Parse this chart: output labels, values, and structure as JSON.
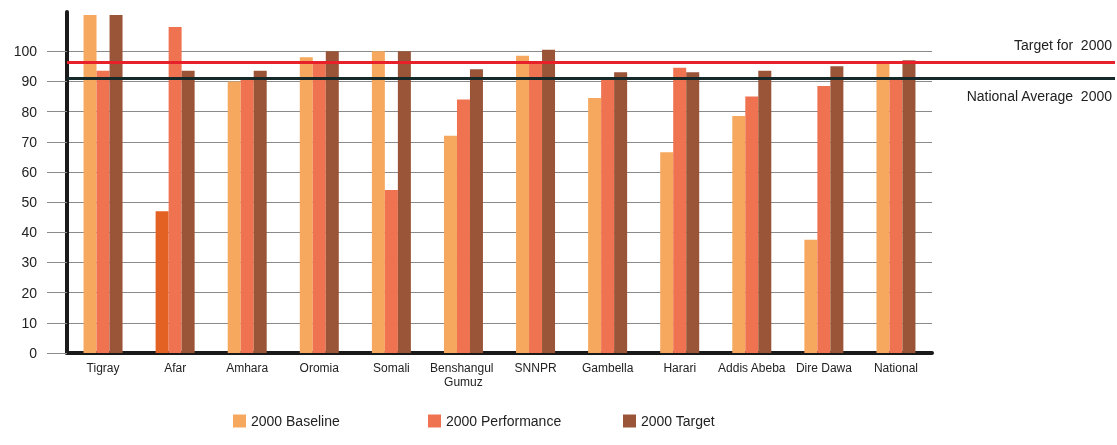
{
  "chart_data": {
    "type": "bar",
    "categories": [
      "Tigray",
      "Afar",
      "Amhara",
      "Oromia",
      "Somali",
      "Benshangul Gumuz",
      "SNNPR",
      "Gambella",
      "Harari",
      "Addis Abeba",
      "Dire Dawa",
      "National"
    ],
    "series": [
      {
        "name": "2000 Baseline",
        "color": "#f6a95e",
        "colors": [
          "#f6a95e",
          "#e36122",
          "#f6a95e",
          "#f6a95e",
          "#f6a95e",
          "#f6a95e",
          "#f6a95e",
          "#f6a95e",
          "#f6a95e",
          "#f6a95e",
          "#f6a95e",
          "#f6a95e"
        ],
        "values": [
          112,
          47,
          90,
          98,
          100,
          72,
          98.5,
          84.5,
          66.5,
          78.5,
          37.5,
          96
        ]
      },
      {
        "name": "2000 Performance",
        "color": "#ef7350",
        "values": [
          93.5,
          108,
          91.5,
          96,
          54,
          84,
          96,
          90.5,
          94.5,
          85,
          88.5,
          90.5
        ]
      },
      {
        "name": "2000 Target",
        "color": "#9a5539",
        "values": [
          112,
          93.5,
          93.5,
          100,
          100,
          94,
          100.5,
          93,
          93,
          93.5,
          95,
          97
        ]
      }
    ],
    "ylim": [
      0,
      113
    ],
    "yticks": [
      0,
      10,
      20,
      30,
      40,
      50,
      60,
      70,
      80,
      90,
      100
    ],
    "grid": "y",
    "legend": "bottom",
    "ref_lines": [
      {
        "axis": "y",
        "value": 96.3,
        "label": "Target for  2000",
        "color": "#e8202a"
      },
      {
        "axis": "y",
        "value": 91,
        "label": "National Average  2000",
        "color": "#15292b"
      }
    ]
  }
}
